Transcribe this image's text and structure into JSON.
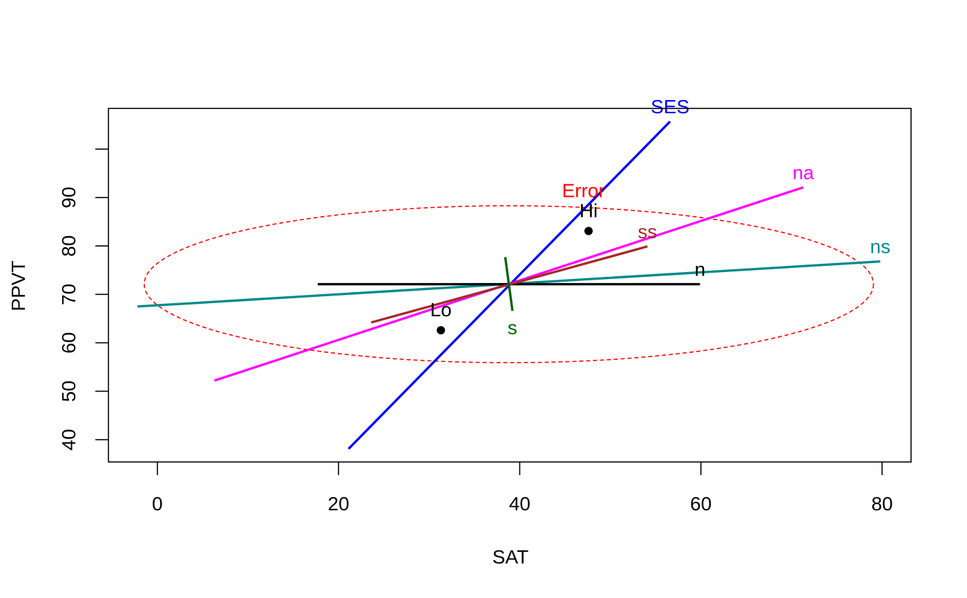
{
  "chart_data": {
    "type": "line",
    "xlabel": "SAT",
    "ylabel": "PPVT",
    "xlim": [
      -5.4,
      83.2
    ],
    "ylim": [
      35.4,
      108.4
    ],
    "xticks": [
      0,
      20,
      40,
      60,
      80
    ],
    "yticks": [
      40,
      50,
      60,
      70,
      80,
      90
    ],
    "points": [
      {
        "label": "Lo",
        "x": 31.3,
        "y": 62.6,
        "color": "#000000"
      },
      {
        "label": "Hi",
        "x": 47.6,
        "y": 83.1,
        "color": "#000000"
      }
    ],
    "segments": [
      {
        "label": "SES",
        "color": "#0000ff",
        "x": [
          21.1,
          56.6
        ],
        "y": [
          38.1,
          105.7
        ],
        "label_pos": "end"
      },
      {
        "label": "na",
        "color": "#ff00ff",
        "x": [
          6.3,
          71.3
        ],
        "y": [
          52.2,
          92.1
        ],
        "label_pos": "end"
      },
      {
        "label": "ns",
        "color": "#008b8b",
        "x": [
          -2.2,
          79.8
        ],
        "y": [
          67.5,
          76.8
        ],
        "label_pos": "end"
      },
      {
        "label": "n",
        "color": "#000000",
        "x": [
          17.7,
          59.9
        ],
        "y": [
          72.1,
          72.1
        ],
        "label_pos": "end"
      },
      {
        "label": "ss",
        "color": "#a52a2a",
        "x": [
          23.6,
          54.1
        ],
        "y": [
          64.2,
          79.9
        ],
        "label_pos": "end"
      },
      {
        "label": "s",
        "color": "#006400",
        "x": [
          38.4,
          39.2
        ],
        "y": [
          77.7,
          66.6
        ],
        "label_pos": "below"
      }
    ],
    "ellipse": {
      "label": "Error",
      "color": "#ff0000",
      "center": [
        38.8,
        72.1
      ],
      "x_range": [
        -1.4,
        79.1
      ],
      "y_range": [
        55.9,
        88.3
      ],
      "linestyle": "dashed"
    },
    "grid": false
  }
}
